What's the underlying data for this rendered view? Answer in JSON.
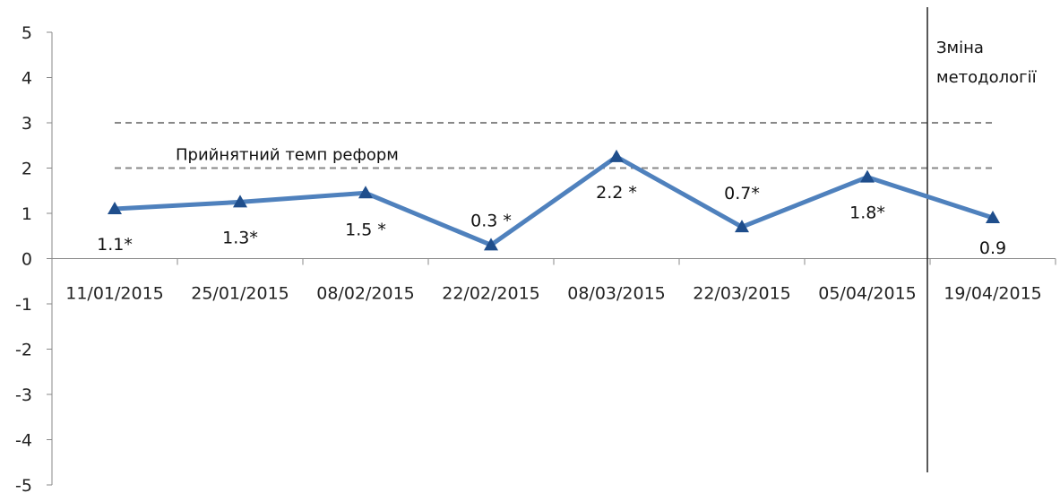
{
  "chart_data": {
    "type": "line",
    "categories": [
      "11/01/2015",
      "25/01/2015",
      "08/02/2015",
      "22/02/2015",
      "08/03/2015",
      "22/03/2015",
      "05/04/2015",
      "19/04/2015"
    ],
    "values": [
      1.1,
      1.25,
      1.45,
      0.3,
      2.25,
      0.7,
      1.8,
      0.9
    ],
    "data_labels": [
      "1.1*",
      "1.3*",
      "1.5 *",
      "0.3 *",
      "2.2 *",
      "0.7*",
      "1.8*",
      "0.9"
    ],
    "ylim": [
      -5,
      5
    ],
    "yticks": [
      5,
      4,
      3,
      2,
      1,
      0,
      -1,
      -2,
      -3,
      -4,
      -5
    ],
    "reference_lines": [
      {
        "y": 3,
        "style": "dashed"
      },
      {
        "y": 2,
        "style": "dashed",
        "label": "Прийнятний темп реформ"
      }
    ],
    "methodology_change": {
      "line1": "Зміна",
      "line2": "методології"
    },
    "series_color": "#4f81bd",
    "marker_color": "#1f4e8c",
    "marker": "triangle",
    "grid": false,
    "legend": "none"
  }
}
